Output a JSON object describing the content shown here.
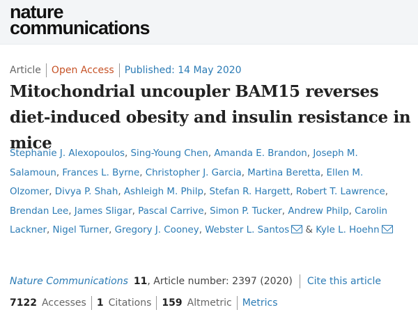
{
  "journal_logo": {
    "line1": "nature",
    "line2": "communications"
  },
  "meta": {
    "type": "Article",
    "access": "Open Access",
    "published": "Published: 14 May 2020"
  },
  "title": "Mitochondrial uncoupler BAM15 reverses diet-induced obesity and insulin resistance in mice",
  "authors": [
    {
      "name": "Stephanie J. Alexopoulos"
    },
    {
      "name": "Sing-Young Chen"
    },
    {
      "name": "Amanda E. Brandon"
    },
    {
      "name": "Joseph M. Salamoun"
    },
    {
      "name": "Frances L. Byrne"
    },
    {
      "name": "Christopher J. Garcia"
    },
    {
      "name": "Martina Beretta"
    },
    {
      "name": "Ellen M. Olzomer"
    },
    {
      "name": "Divya P. Shah"
    },
    {
      "name": "Ashleigh M. Philp"
    },
    {
      "name": "Stefan R. Hargett"
    },
    {
      "name": "Robert T. Lawrence"
    },
    {
      "name": "Brendan Lee"
    },
    {
      "name": "James Sligar"
    },
    {
      "name": "Pascal Carrive"
    },
    {
      "name": "Simon P. Tucker"
    },
    {
      "name": "Andrew Philp"
    },
    {
      "name": "Carolin Lackner"
    },
    {
      "name": "Nigel Turner"
    },
    {
      "name": "Gregory J. Cooney"
    },
    {
      "name": "Webster L. Santos",
      "email": true
    },
    {
      "name": "Kyle L. Hoehn",
      "email": true
    }
  ],
  "citation": {
    "journal": "Nature Communications",
    "volume": "11",
    "rest": ", Article number: 2397 (2020)",
    "cite_link": "Cite this article"
  },
  "stats": {
    "accesses": "7122",
    "accesses_label": "Accesses",
    "citations": "1",
    "citations_label": "Citations",
    "altmetric": "159",
    "altmetric_label": "Altmetric",
    "metrics_link": "Metrics"
  }
}
